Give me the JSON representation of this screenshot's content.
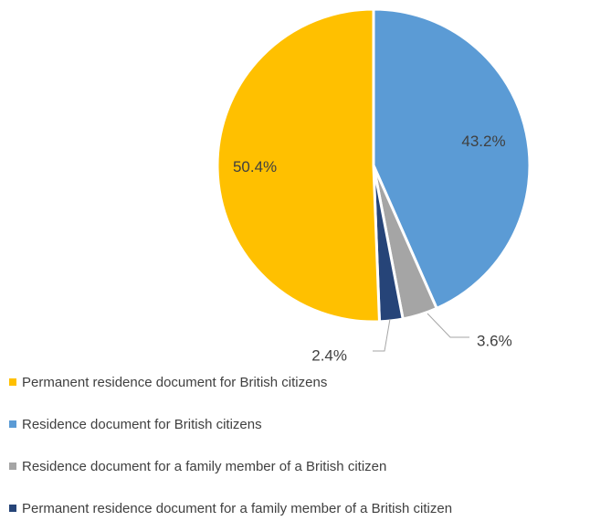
{
  "chart_data": {
    "type": "pie",
    "title": "",
    "slices": [
      {
        "label": "Residence document for British citizens",
        "value": 43.2,
        "display": "43.2%",
        "color": "#5b9bd5"
      },
      {
        "label": "Residence document for a family member of a British citizen",
        "value": 3.6,
        "display": "3.6%",
        "color": "#a5a5a5"
      },
      {
        "label": "Permanent residence document for a family member of a British citizen",
        "value": 2.4,
        "display": "2.4%",
        "color": "#264478"
      },
      {
        "label": "Permanent residence document for British citizens",
        "value": 50.4,
        "display": "50.4%",
        "color": "#ffc000"
      }
    ],
    "start_angle": "12 o'clock, clockwise",
    "legend_position": "bottom-left",
    "legend": [
      {
        "label": "Permanent residence document for British citizens",
        "color": "#ffc000"
      },
      {
        "label": "Residence document for British citizens",
        "color": "#5b9bd5"
      },
      {
        "label": "Residence document for a family member of a British citizen",
        "color": "#a5a5a5"
      },
      {
        "label": "Permanent residence document for a family member of a British citizen",
        "color": "#264478"
      }
    ]
  }
}
